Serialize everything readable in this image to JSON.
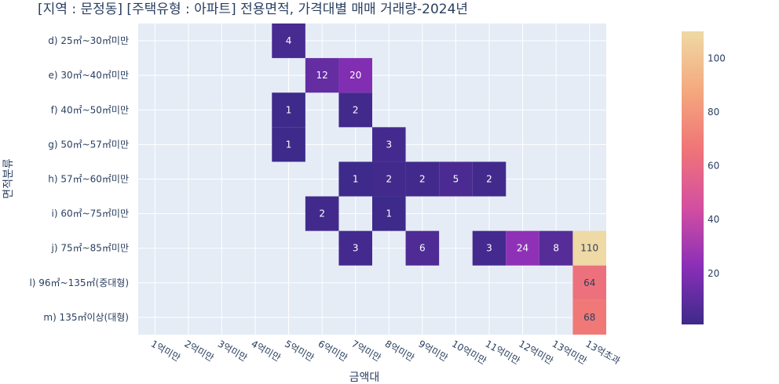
{
  "chart_data": {
    "type": "heatmap",
    "title": "[지역 : 문정동] [주택유형 : 아파트] 전용면적, 가격대별 매매 거래량-2024년",
    "xlabel": "금액대",
    "ylabel": "면적분류",
    "x_categories": [
      "1억미만",
      "2억미만",
      "3억미만",
      "4억미만",
      "5억미만",
      "6억미만",
      "7억미만",
      "8억미만",
      "9억미만",
      "10억미만",
      "11억미만",
      "12억미만",
      "13억미만",
      "13억초과"
    ],
    "y_categories": [
      "d) 25㎡~30㎡미만",
      "e) 30㎡~40㎡미만",
      "f) 40㎡~50㎡미만",
      "g) 50㎡~57㎡미만",
      "h) 57㎡~60㎡미만",
      "i) 60㎡~75㎡미만",
      "j) 75㎡~85㎡미만",
      "l) 96㎡~135㎡(중대형)",
      "m) 135㎡이상(대형)"
    ],
    "cells": [
      {
        "x": "5억미만",
        "y": "d) 25㎡~30㎡미만",
        "value": 4
      },
      {
        "x": "6억미만",
        "y": "e) 30㎡~40㎡미만",
        "value": 12
      },
      {
        "x": "7억미만",
        "y": "e) 30㎡~40㎡미만",
        "value": 20
      },
      {
        "x": "5억미만",
        "y": "f) 40㎡~50㎡미만",
        "value": 1
      },
      {
        "x": "7억미만",
        "y": "f) 40㎡~50㎡미만",
        "value": 2
      },
      {
        "x": "5억미만",
        "y": "g) 50㎡~57㎡미만",
        "value": 1
      },
      {
        "x": "8억미만",
        "y": "g) 50㎡~57㎡미만",
        "value": 3
      },
      {
        "x": "7억미만",
        "y": "h) 57㎡~60㎡미만",
        "value": 1
      },
      {
        "x": "8억미만",
        "y": "h) 57㎡~60㎡미만",
        "value": 2
      },
      {
        "x": "9억미만",
        "y": "h) 57㎡~60㎡미만",
        "value": 2
      },
      {
        "x": "10억미만",
        "y": "h) 57㎡~60㎡미만",
        "value": 5
      },
      {
        "x": "11억미만",
        "y": "h) 57㎡~60㎡미만",
        "value": 2
      },
      {
        "x": "6억미만",
        "y": "i) 60㎡~75㎡미만",
        "value": 2
      },
      {
        "x": "8억미만",
        "y": "i) 60㎡~75㎡미만",
        "value": 1
      },
      {
        "x": "7억미만",
        "y": "j) 75㎡~85㎡미만",
        "value": 3
      },
      {
        "x": "9억미만",
        "y": "j) 75㎡~85㎡미만",
        "value": 6
      },
      {
        "x": "11억미만",
        "y": "j) 75㎡~85㎡미만",
        "value": 3
      },
      {
        "x": "12억미만",
        "y": "j) 75㎡~85㎡미만",
        "value": 24
      },
      {
        "x": "13억미만",
        "y": "j) 75㎡~85㎡미만",
        "value": 8
      },
      {
        "x": "13억초과",
        "y": "j) 75㎡~85㎡미만",
        "value": 110
      },
      {
        "x": "13억초과",
        "y": "l) 96㎡~135㎡(중대형)",
        "value": 64
      },
      {
        "x": "13억초과",
        "y": "m) 135㎡이상(대형)",
        "value": 68
      }
    ],
    "colorbar": {
      "min": 1,
      "max": 110,
      "tick_values": [
        20,
        40,
        60,
        80,
        100
      ],
      "colorscale": [
        "#3d2a8a",
        "#8b2fb8",
        "#d44fa0",
        "#f07577",
        "#f4a97e",
        "#efd9a5"
      ]
    },
    "background_color": "#e5ecf6",
    "grid": true
  }
}
